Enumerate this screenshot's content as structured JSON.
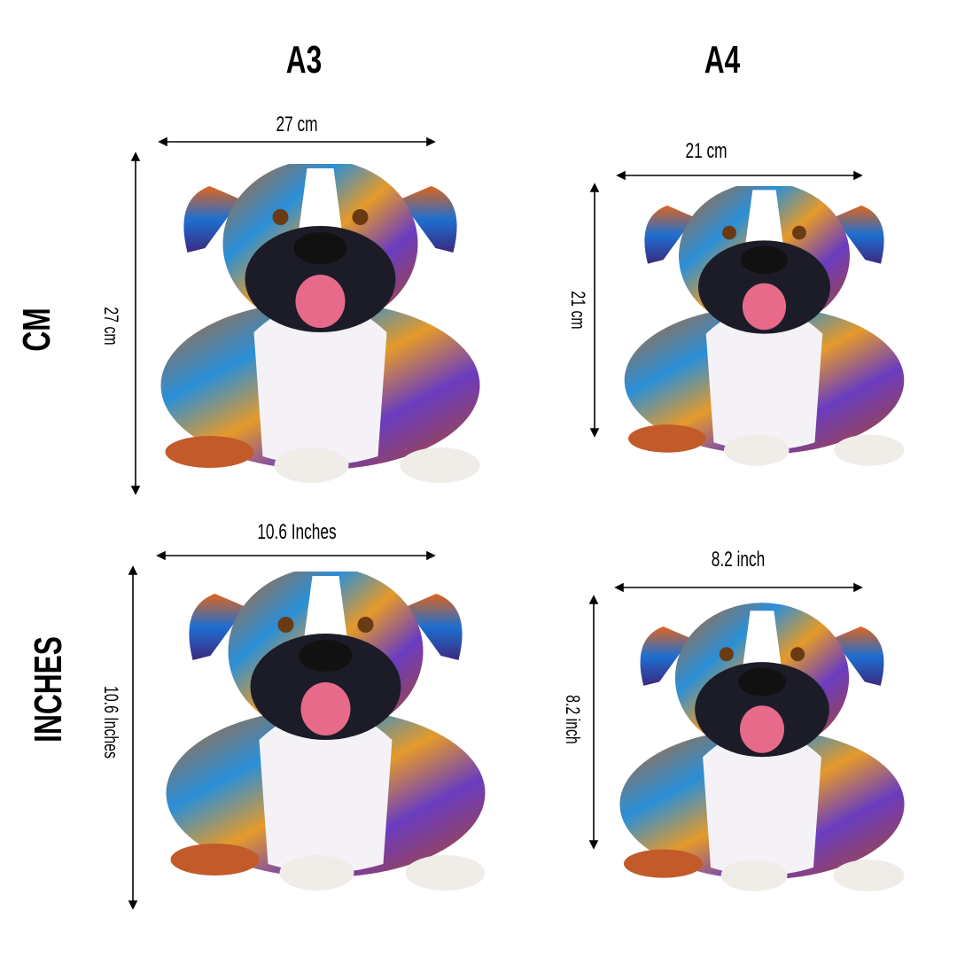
{
  "columns": {
    "a3": "A3",
    "a4": "A4"
  },
  "rows": {
    "cm": "CM",
    "inches": "INCHES"
  },
  "a3_cm": {
    "width": "27 cm",
    "height": "27 cm"
  },
  "a4_cm": {
    "width": "21 cm",
    "height": "21 cm"
  },
  "a3_inches": {
    "width": "10.6  Inches",
    "height": "10.6 Inches"
  },
  "a4_inches": {
    "width": "8.2 inch",
    "height": "8.2 inch"
  },
  "image_subject": "boxer-dog-colorful-illustration"
}
